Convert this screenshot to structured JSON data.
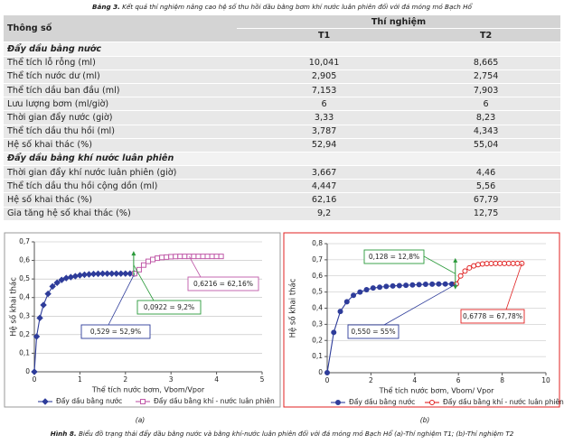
{
  "document": {
    "table_label": "Bảng 3.",
    "table_caption": "Kết quả thí nghiệm nâng cao hệ số thu hồi dầu bằng bơm khí nước luân phiên đối với đá móng mỏ Bạch Hổ",
    "table": {
      "header": [
        "Thông số",
        "Thí nghiệm",
        "T1",
        "T2"
      ],
      "sections": [
        {
          "title": "Đẩy dầu bằng nước",
          "rows": [
            [
              "Thể tích lỗ rỗng (ml)",
              "10,041",
              "8,665"
            ],
            [
              "Thể tích nước dư (ml)",
              "2,905",
              "2,754"
            ],
            [
              "Thể tích dầu ban đầu (ml)",
              "7,153",
              "7,903"
            ],
            [
              "Lưu lượng bơm (ml/giờ)",
              "6",
              "6"
            ],
            [
              "Thời gian đẩy nước (giờ)",
              "3,33",
              "8,23"
            ],
            [
              "Thể tích dầu thu hồi (ml)",
              "3,787",
              "4,343"
            ],
            [
              "Hệ số khai thác (%)",
              "52,94",
              "55,04"
            ]
          ]
        },
        {
          "title": "Đẩy dầu bằng khí nước luân phiên",
          "rows": [
            [
              "Thời gian đẩy khí nước luân phiên (giờ)",
              "3,667",
              "4,46"
            ],
            [
              "Thể tích dầu thu hồi cộng dồn (ml)",
              "4,447",
              "5,56"
            ],
            [
              "Hệ số khai thác (%)",
              "62,16",
              "67,79"
            ],
            [
              "Gia tăng hệ số khai thác (%)",
              "9,2",
              "12,75"
            ]
          ]
        }
      ]
    },
    "figure_label": "Hình 8.",
    "figure_caption": "Biểu đồ trạng thái đẩy dầu bằng nước và bằng khí-nước luân phiên đối với đá móng mỏ Bạch Hổ (a)-Thí nghiệm T1; (b)-Thí nghiệm T2"
  },
  "chart_data": [
    {
      "type": "line",
      "label": "(a)",
      "frame_color": "#999999",
      "x_label": "Thể tích nước bơm, Vbom/Vpor",
      "y_label": "Hệ số khai thác",
      "xlim": [
        0,
        5
      ],
      "xticks": [
        0,
        1,
        2,
        3,
        4,
        5
      ],
      "ylim": [
        0,
        0.7
      ],
      "yticks": [
        0,
        {
          "value": 0.1,
          "label": "0,1"
        },
        {
          "value": 0.2,
          "label": "0,2"
        },
        {
          "value": 0.3,
          "label": "0,3"
        },
        {
          "value": 0.4,
          "label": "0,4"
        },
        {
          "value": 0.5,
          "label": "0,5"
        },
        {
          "value": 0.6,
          "label": "0,6"
        },
        {
          "value": 0.7,
          "label": "0,7"
        }
      ],
      "grid": true,
      "series": [
        {
          "name": "Đẩy dầu bằng nước",
          "color": "#2e3c9a",
          "marker": "diamond",
          "x": [
            0,
            0.05,
            0.12,
            0.2,
            0.3,
            0.4,
            0.5,
            0.6,
            0.7,
            0.8,
            0.9,
            1.0,
            1.1,
            1.2,
            1.3,
            1.4,
            1.5,
            1.6,
            1.7,
            1.8,
            1.9,
            2.0,
            2.1,
            2.2
          ],
          "values": [
            0,
            0.19,
            0.29,
            0.36,
            0.42,
            0.46,
            0.48,
            0.495,
            0.505,
            0.51,
            0.515,
            0.52,
            0.523,
            0.525,
            0.527,
            0.528,
            0.529,
            0.529,
            0.529,
            0.529,
            0.529,
            0.529,
            0.529,
            0.529
          ]
        },
        {
          "name": "Đẩy dầu bằng khí - nước luân phiên",
          "color": "#c05aa8",
          "marker": "square",
          "x": [
            2.2,
            2.3,
            2.4,
            2.5,
            2.6,
            2.7,
            2.8,
            2.9,
            3.0,
            3.1,
            3.2,
            3.3,
            3.4,
            3.5,
            3.6,
            3.7,
            3.8,
            3.9,
            4.0,
            4.1
          ],
          "values": [
            0.529,
            0.55,
            0.575,
            0.595,
            0.605,
            0.612,
            0.616,
            0.618,
            0.62,
            0.621,
            0.6216,
            0.6216,
            0.6216,
            0.6216,
            0.6216,
            0.6216,
            0.6216,
            0.6216,
            0.6216,
            0.6216
          ]
        }
      ],
      "annotations": [
        {
          "text": "0,529 = 52,9%",
          "color": "#2e3c9a"
        },
        {
          "text": "0,0922 = 9,2%",
          "color": "#2a9a3a"
        },
        {
          "text": "0,6216 = 62,16%",
          "color": "#c05aa8"
        }
      ]
    },
    {
      "type": "line",
      "label": "(b)",
      "frame_color": "#e02020",
      "x_label": "Thể tích nước bơm, Vbom/ Vpor",
      "y_label": "Hệ số khai thác",
      "xlim": [
        0,
        10
      ],
      "xticks": [
        0,
        2,
        4,
        6,
        8,
        10
      ],
      "ylim": [
        0,
        0.8
      ],
      "yticks": [
        0,
        {
          "value": 0.1,
          "label": "0,1"
        },
        {
          "value": 0.2,
          "label": "0,2"
        },
        {
          "value": 0.3,
          "label": "0,3"
        },
        {
          "value": 0.4,
          "label": "0,4"
        },
        {
          "value": 0.5,
          "label": "0,5"
        },
        {
          "value": 0.6,
          "label": "0,6"
        },
        {
          "value": 0.7,
          "label": "0,7"
        },
        {
          "value": 0.8,
          "label": "0,8"
        }
      ],
      "grid": true,
      "series": [
        {
          "name": "Đẩy dầu bằng nước",
          "color": "#2e3c9a",
          "marker": "circle",
          "x": [
            0,
            0.3,
            0.6,
            0.9,
            1.2,
            1.5,
            1.8,
            2.1,
            2.4,
            2.7,
            3.0,
            3.3,
            3.6,
            3.9,
            4.2,
            4.5,
            4.8,
            5.1,
            5.4,
            5.7,
            5.9
          ],
          "values": [
            0,
            0.25,
            0.38,
            0.44,
            0.48,
            0.5,
            0.515,
            0.525,
            0.53,
            0.535,
            0.538,
            0.54,
            0.542,
            0.544,
            0.546,
            0.548,
            0.549,
            0.55,
            0.55,
            0.55,
            0.55
          ]
        },
        {
          "name": "Đẩy dầu bằng khí - nước luân phiên",
          "color": "#e02020",
          "marker": "circle",
          "x": [
            5.9,
            6.1,
            6.3,
            6.5,
            6.7,
            6.9,
            7.1,
            7.3,
            7.5,
            7.7,
            7.9,
            8.1,
            8.3,
            8.5,
            8.7,
            8.9
          ],
          "values": [
            0.55,
            0.6,
            0.63,
            0.65,
            0.662,
            0.67,
            0.674,
            0.676,
            0.677,
            0.6778,
            0.6778,
            0.6778,
            0.6778,
            0.6778,
            0.6778,
            0.6778
          ]
        }
      ],
      "annotations": [
        {
          "text": "0,128 = 12,8%",
          "color": "#2a9a3a"
        },
        {
          "text": "0,550 = 55%",
          "color": "#2e3c9a"
        },
        {
          "text": "0,6778 = 67,78%",
          "color": "#e02020"
        }
      ]
    }
  ]
}
